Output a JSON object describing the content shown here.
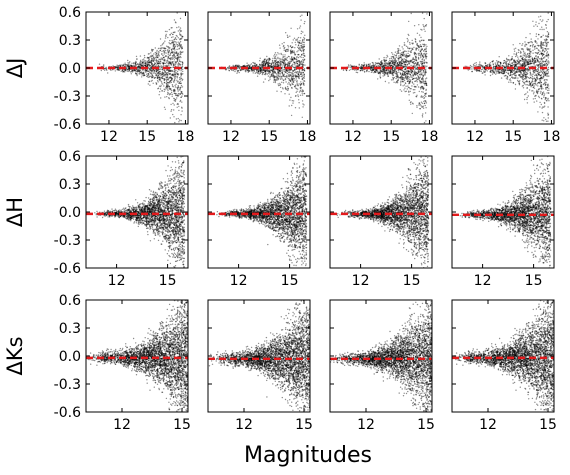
{
  "figure": {
    "xlabel": "Magnitudes",
    "zero_line_color": "#e31a1c",
    "point_color": "#000000"
  },
  "chart_data": [
    {
      "type": "scatter",
      "row": 0,
      "col": 0,
      "panel": "J-1",
      "ylabel": "ΔJ",
      "xlim": [
        10.2,
        18.2
      ],
      "ylim": [
        -0.6,
        0.6
      ],
      "xticks": [
        12,
        15,
        18
      ],
      "yticks": [
        -0.6,
        -0.3,
        0.0,
        0.3,
        0.6
      ],
      "zero_line_y": 0.0,
      "density": {
        "x_min": 11.0,
        "x_max": 17.8,
        "y_spread_bright": 0.03,
        "y_spread_faint": 0.6,
        "n": 1300
      }
    },
    {
      "type": "scatter",
      "row": 0,
      "col": 1,
      "panel": "J-2",
      "xlim": [
        10.2,
        18.2
      ],
      "ylim": [
        -0.6,
        0.6
      ],
      "xticks": [
        12,
        15,
        18
      ],
      "yticks": [
        -0.6,
        -0.3,
        0.0,
        0.3,
        0.6
      ],
      "zero_line_y": 0.0,
      "density": {
        "x_min": 11.0,
        "x_max": 17.8,
        "y_spread_bright": 0.03,
        "y_spread_faint": 0.5,
        "n": 1200
      }
    },
    {
      "type": "scatter",
      "row": 0,
      "col": 2,
      "panel": "J-3",
      "xlim": [
        10.2,
        18.2
      ],
      "ylim": [
        -0.6,
        0.6
      ],
      "xticks": [
        12,
        15,
        18
      ],
      "yticks": [
        -0.6,
        -0.3,
        0.0,
        0.3,
        0.6
      ],
      "zero_line_y": 0.0,
      "density": {
        "x_min": 11.0,
        "x_max": 17.8,
        "y_spread_bright": 0.04,
        "y_spread_faint": 0.55,
        "n": 1300
      }
    },
    {
      "type": "scatter",
      "row": 0,
      "col": 3,
      "panel": "J-4",
      "xlim": [
        10.2,
        18.2
      ],
      "ylim": [
        -0.6,
        0.6
      ],
      "xticks": [
        12,
        15,
        18
      ],
      "yticks": [
        -0.6,
        -0.3,
        0.0,
        0.3,
        0.6
      ],
      "zero_line_y": 0.0,
      "density": {
        "x_min": 11.0,
        "x_max": 17.8,
        "y_spread_bright": 0.05,
        "y_spread_faint": 0.6,
        "n": 1300
      }
    },
    {
      "type": "scatter",
      "row": 1,
      "col": 0,
      "panel": "H-1",
      "ylabel": "ΔH",
      "xlim": [
        10.2,
        16.2
      ],
      "ylim": [
        -0.6,
        0.6
      ],
      "xticks": [
        12,
        15
      ],
      "yticks": [
        -0.6,
        -0.3,
        0.0,
        0.3,
        0.6
      ],
      "zero_line_y": -0.02,
      "density": {
        "x_min": 10.6,
        "x_max": 16.0,
        "y_spread_bright": 0.03,
        "y_spread_faint": 0.65,
        "n": 2600
      }
    },
    {
      "type": "scatter",
      "row": 1,
      "col": 1,
      "panel": "H-2",
      "xlim": [
        10.2,
        16.2
      ],
      "ylim": [
        -0.6,
        0.6
      ],
      "xticks": [
        12,
        15
      ],
      "yticks": [
        -0.6,
        -0.3,
        0.0,
        0.3,
        0.6
      ],
      "zero_line_y": -0.02,
      "density": {
        "x_min": 10.6,
        "x_max": 16.0,
        "y_spread_bright": 0.03,
        "y_spread_faint": 0.65,
        "n": 2600
      }
    },
    {
      "type": "scatter",
      "row": 1,
      "col": 2,
      "panel": "H-3",
      "xlim": [
        10.2,
        16.2
      ],
      "ylim": [
        -0.6,
        0.6
      ],
      "xticks": [
        12,
        15
      ],
      "yticks": [
        -0.6,
        -0.3,
        0.0,
        0.3,
        0.6
      ],
      "zero_line_y": -0.02,
      "density": {
        "x_min": 10.6,
        "x_max": 16.0,
        "y_spread_bright": 0.03,
        "y_spread_faint": 0.65,
        "n": 2600
      }
    },
    {
      "type": "scatter",
      "row": 1,
      "col": 3,
      "panel": "H-4",
      "xlim": [
        10.2,
        16.2
      ],
      "ylim": [
        -0.6,
        0.6
      ],
      "xticks": [
        12,
        15
      ],
      "yticks": [
        -0.6,
        -0.3,
        0.0,
        0.3,
        0.6
      ],
      "zero_line_y": -0.03,
      "density": {
        "x_min": 10.6,
        "x_max": 16.0,
        "y_spread_bright": 0.04,
        "y_spread_faint": 0.65,
        "n": 2600
      }
    },
    {
      "type": "scatter",
      "row": 2,
      "col": 0,
      "panel": "Ks-1",
      "ylabel": "ΔKs",
      "xlim": [
        10.2,
        15.3
      ],
      "ylim": [
        -0.6,
        0.6
      ],
      "xticks": [
        12,
        15
      ],
      "yticks": [
        -0.6,
        -0.3,
        0.0,
        0.3,
        0.6
      ],
      "zero_line_y": -0.02,
      "density": {
        "x_min": 10.2,
        "x_max": 15.3,
        "y_spread_bright": 0.06,
        "y_spread_faint": 0.7,
        "n": 3200
      }
    },
    {
      "type": "scatter",
      "row": 2,
      "col": 1,
      "panel": "Ks-2",
      "xlim": [
        10.2,
        15.3
      ],
      "ylim": [
        -0.6,
        0.6
      ],
      "xticks": [
        12,
        15
      ],
      "yticks": [
        -0.6,
        -0.3,
        0.0,
        0.3,
        0.6
      ],
      "zero_line_y": -0.03,
      "density": {
        "x_min": 10.2,
        "x_max": 15.3,
        "y_spread_bright": 0.06,
        "y_spread_faint": 0.7,
        "n": 3200
      }
    },
    {
      "type": "scatter",
      "row": 2,
      "col": 2,
      "panel": "Ks-3",
      "xlim": [
        10.2,
        15.3
      ],
      "ylim": [
        -0.6,
        0.6
      ],
      "xticks": [
        12,
        15
      ],
      "yticks": [
        -0.6,
        -0.3,
        0.0,
        0.3,
        0.6
      ],
      "zero_line_y": -0.03,
      "density": {
        "x_min": 10.2,
        "x_max": 15.3,
        "y_spread_bright": 0.06,
        "y_spread_faint": 0.7,
        "n": 3200
      }
    },
    {
      "type": "scatter",
      "row": 2,
      "col": 3,
      "panel": "Ks-4",
      "xlim": [
        10.2,
        15.3
      ],
      "ylim": [
        -0.6,
        0.6
      ],
      "xticks": [
        12,
        15
      ],
      "yticks": [
        -0.6,
        -0.3,
        0.0,
        0.3,
        0.6
      ],
      "zero_line_y": -0.02,
      "density": {
        "x_min": 10.2,
        "x_max": 15.3,
        "y_spread_bright": 0.06,
        "y_spread_faint": 0.7,
        "n": 3200
      }
    }
  ]
}
